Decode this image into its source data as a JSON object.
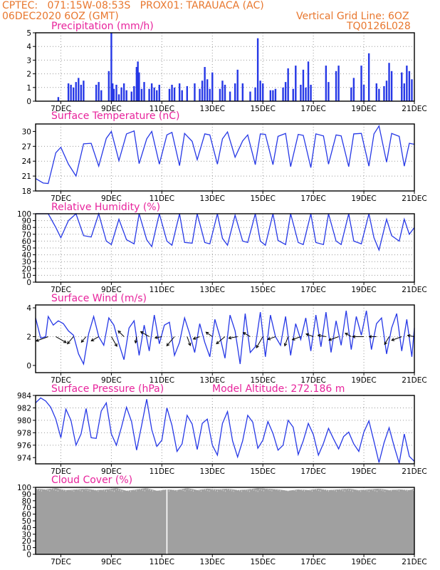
{
  "header": {
    "line1": "CPTEC:   071:15W-08:53S   PROX01: TARAUACA (AC)",
    "line2": "06DEC2020 6OZ (GMT)",
    "grid_note": "Vertical Grid Line: 6OZ",
    "code": "TQ0126L028"
  },
  "colors": {
    "header": "#e8772e",
    "title": "#e8239c",
    "series": "#2638e6",
    "cloud": "#a0a0a0",
    "grid": "#9a9a9a",
    "axis": "#000000"
  },
  "x_ticks": [
    "7DEC",
    "9DEC",
    "11DEC",
    "13DEC",
    "15DEC",
    "17DEC",
    "19DEC",
    "21DEC"
  ],
  "chart_data": [
    {
      "id": "precip",
      "type": "bar",
      "title": "Precipitation  (mm/h)",
      "xlim_days": [
        6.0,
        21.0
      ],
      "ylim": [
        0,
        5
      ],
      "yticks": [
        "0",
        "1",
        "2",
        "3",
        "4",
        "5"
      ],
      "x": [
        6.9,
        7.3,
        7.4,
        7.5,
        7.6,
        7.7,
        7.8,
        7.9,
        8.4,
        8.5,
        8.6,
        8.9,
        9.0,
        9.05,
        9.1,
        9.2,
        9.3,
        9.4,
        9.5,
        9.6,
        9.8,
        9.9,
        10.0,
        10.05,
        10.1,
        10.2,
        10.3,
        10.5,
        10.6,
        10.7,
        10.8,
        10.9,
        11.3,
        11.4,
        11.5,
        11.7,
        11.8,
        12.0,
        12.3,
        12.5,
        12.6,
        12.7,
        12.8,
        12.9,
        13.0,
        13.3,
        13.4,
        13.5,
        13.7,
        13.9,
        14.0,
        14.2,
        14.5,
        14.7,
        14.8,
        14.9,
        15.0,
        15.3,
        15.4,
        15.5,
        15.8,
        15.9,
        16.0,
        16.2,
        16.3,
        16.5,
        16.6,
        16.7,
        16.8,
        16.9,
        17.5,
        17.6,
        17.9,
        18.0,
        18.5,
        18.6,
        18.9,
        19.0,
        19.2,
        19.5,
        19.6,
        19.8,
        19.9,
        20.0,
        20.1,
        20.5,
        20.6,
        20.7,
        20.8,
        20.9
      ],
      "values": [
        0.3,
        1.3,
        1.2,
        1.0,
        1.4,
        1.7,
        1.2,
        1.5,
        1.2,
        1.4,
        0.8,
        2.2,
        5.0,
        1.3,
        0.9,
        1.2,
        0.5,
        1.0,
        1.3,
        0.8,
        0.7,
        1.1,
        2.5,
        2.9,
        2.1,
        0.9,
        1.4,
        0.9,
        1.3,
        1.0,
        0.8,
        1.2,
        0.9,
        1.2,
        1.0,
        1.3,
        0.8,
        1.1,
        1.3,
        0.9,
        1.5,
        2.5,
        1.6,
        0.9,
        2.1,
        0.9,
        1.5,
        1.2,
        0.7,
        1.3,
        2.3,
        1.3,
        0.7,
        1.0,
        4.6,
        1.5,
        1.3,
        0.8,
        0.8,
        0.9,
        1.0,
        1.4,
        2.4,
        0.9,
        2.6,
        1.2,
        2.3,
        1.0,
        2.9,
        1.2,
        2.6,
        1.4,
        2.2,
        2.6,
        1.0,
        1.7,
        2.6,
        1.2,
        3.5,
        1.3,
        0.9,
        1.1,
        1.5,
        2.8,
        2.2,
        2.1,
        1.3,
        2.6,
        2.2,
        1.6
      ]
    },
    {
      "id": "temp",
      "type": "line",
      "title": "Surface Temperature (nC)",
      "xlim_days": [
        6.0,
        21.0
      ],
      "ylim": [
        18,
        31.5
      ],
      "yticks": [
        "18",
        "21",
        "24",
        "27",
        "30"
      ],
      "ytick_values": [
        18,
        21,
        24,
        27,
        30
      ],
      "x": [
        6.0,
        6.3,
        6.5,
        6.8,
        7.0,
        7.3,
        7.6,
        7.9,
        8.2,
        8.5,
        8.8,
        9.0,
        9.3,
        9.6,
        9.9,
        10.1,
        10.4,
        10.6,
        10.9,
        11.2,
        11.4,
        11.7,
        11.9,
        12.2,
        12.4,
        12.7,
        12.9,
        13.2,
        13.4,
        13.6,
        13.9,
        14.2,
        14.4,
        14.7,
        14.9,
        15.1,
        15.4,
        15.6,
        15.9,
        16.1,
        16.4,
        16.6,
        16.9,
        17.1,
        17.4,
        17.6,
        17.9,
        18.1,
        18.4,
        18.6,
        18.9,
        19.2,
        19.4,
        19.6,
        19.9,
        20.1,
        20.4,
        20.6,
        20.8,
        21.0
      ],
      "values": [
        20.5,
        19.6,
        19.5,
        25.7,
        26.8,
        23.4,
        21.0,
        27.5,
        27.6,
        23.0,
        28.6,
        30.0,
        24.1,
        29.5,
        30.1,
        23.5,
        28.5,
        30.0,
        23.4,
        29.3,
        29.8,
        23.1,
        29.6,
        28.0,
        24.3,
        29.5,
        29.3,
        23.4,
        28.5,
        29.9,
        24.8,
        28.1,
        29.3,
        23.3,
        29.5,
        29.4,
        23.3,
        29.0,
        29.6,
        22.9,
        29.4,
        29.2,
        22.7,
        29.5,
        29.1,
        23.4,
        29.3,
        29.1,
        22.9,
        29.5,
        29.6,
        23.0,
        29.5,
        31.1,
        23.8,
        29.6,
        29.0,
        23.0,
        27.6,
        27.4
      ]
    },
    {
      "id": "rh",
      "type": "line",
      "title": "Relative Humidity  (%)",
      "xlim_days": [
        6.0,
        21.0
      ],
      "ylim": [
        0,
        100
      ],
      "yticks": [
        "0",
        "10",
        "20",
        "30",
        "40",
        "50",
        "60",
        "70",
        "80",
        "90",
        "100"
      ],
      "x": [
        6.0,
        6.3,
        6.5,
        6.8,
        7.0,
        7.3,
        7.6,
        7.9,
        8.2,
        8.5,
        8.8,
        9.0,
        9.3,
        9.6,
        9.9,
        10.1,
        10.4,
        10.6,
        10.9,
        11.2,
        11.4,
        11.7,
        11.9,
        12.2,
        12.4,
        12.7,
        12.9,
        13.2,
        13.4,
        13.6,
        13.9,
        14.2,
        14.4,
        14.7,
        14.9,
        15.1,
        15.4,
        15.6,
        15.9,
        16.1,
        16.4,
        16.6,
        16.9,
        17.1,
        17.4,
        17.6,
        17.9,
        18.1,
        18.4,
        18.6,
        18.9,
        19.2,
        19.4,
        19.6,
        19.9,
        20.1,
        20.4,
        20.6,
        20.8,
        21.0
      ],
      "values": [
        100,
        100,
        100,
        80,
        65,
        90,
        100,
        68,
        66,
        100,
        60,
        55,
        92,
        62,
        56,
        100,
        62,
        52,
        100,
        60,
        54,
        100,
        58,
        57,
        100,
        58,
        56,
        100,
        64,
        54,
        98,
        60,
        58,
        100,
        60,
        54,
        100,
        61,
        55,
        100,
        58,
        55,
        100,
        58,
        55,
        100,
        60,
        55,
        100,
        60,
        56,
        100,
        65,
        47,
        92,
        68,
        60,
        92,
        70,
        80
      ]
    },
    {
      "id": "wind",
      "type": "line",
      "title": "Surface Wind  (m/s)",
      "xlim_days": [
        6.0,
        21.0
      ],
      "ylim": [
        -0.5,
        4.2
      ],
      "yticks": [
        "0",
        "2",
        "4"
      ],
      "ytick_values": [
        0,
        2,
        4
      ],
      "x": [
        6.0,
        6.2,
        6.4,
        6.5,
        6.7,
        6.9,
        7.1,
        7.3,
        7.5,
        7.7,
        7.9,
        8.1,
        8.3,
        8.5,
        8.7,
        8.9,
        9.1,
        9.3,
        9.5,
        9.7,
        9.9,
        10.1,
        10.3,
        10.5,
        10.7,
        10.9,
        11.1,
        11.3,
        11.5,
        11.7,
        11.9,
        12.1,
        12.3,
        12.5,
        12.7,
        12.9,
        13.1,
        13.3,
        13.5,
        13.7,
        13.9,
        14.1,
        14.3,
        14.5,
        14.7,
        14.9,
        15.1,
        15.3,
        15.5,
        15.7,
        15.9,
        16.1,
        16.3,
        16.5,
        16.7,
        16.9,
        17.1,
        17.3,
        17.5,
        17.7,
        17.9,
        18.1,
        18.3,
        18.5,
        18.7,
        18.9,
        19.1,
        19.3,
        19.5,
        19.7,
        19.9,
        20.1,
        20.3,
        20.5,
        20.7,
        20.9,
        21.0
      ],
      "values": [
        3.3,
        1.9,
        2.0,
        3.4,
        2.8,
        3.1,
        2.9,
        2.4,
        2.1,
        0.8,
        0.1,
        2.2,
        3.4,
        2.0,
        1.4,
        3.3,
        2.8,
        1.5,
        0.4,
        2.6,
        3.1,
        0.7,
        2.8,
        1.0,
        3.5,
        1.5,
        2.8,
        3.0,
        0.7,
        1.6,
        3.3,
        2.2,
        0.9,
        2.9,
        1.6,
        0.6,
        3.2,
        2.0,
        0.5,
        3.5,
        2.4,
        0.1,
        3.6,
        0.9,
        1.3,
        3.7,
        0.6,
        3.5,
        2.0,
        1.4,
        3.4,
        0.7,
        2.9,
        1.8,
        3.3,
        1.0,
        3.5,
        1.3,
        3.7,
        0.9,
        3.1,
        1.4,
        3.8,
        1.1,
        3.4,
        2.1,
        3.8,
        1.1,
        2.9,
        3.3,
        0.8,
        2.6,
        3.6,
        1.0,
        3.2,
        0.6,
        2.6
      ],
      "vectors": {
        "x": [
          6.5,
          6.8,
          7.5,
          8.0,
          8.5,
          9.0,
          9.5,
          10.0,
          10.5,
          11.0,
          11.5,
          12.0,
          12.5,
          13.0,
          13.5,
          14.0,
          14.5,
          15.0,
          15.5,
          16.0,
          16.5,
          17.0,
          17.5,
          18.0,
          18.5,
          19.0,
          19.5,
          20.0,
          20.5,
          21.0
        ],
        "speed": [
          3.0,
          2.8,
          2.2,
          1.7,
          2.0,
          2.6,
          1.9,
          1.5,
          2.3,
          1.6,
          2.8,
          2.2,
          1.6,
          1.8,
          2.6,
          2.1,
          1.9,
          3.0,
          1.9,
          2.3,
          2.1,
          1.8,
          1.9,
          2.4,
          1.6,
          2.6,
          1.7,
          2.1,
          2.5,
          1.6
        ],
        "dir_deg": [
          200,
          330,
          230,
          230,
          210,
          300,
          135,
          260,
          150,
          190,
          230,
          290,
          200,
          145,
          220,
          190,
          150,
          240,
          200,
          250,
          200,
          160,
          170,
          200,
          150,
          180,
          180,
          240,
          200,
          170
        ]
      }
    },
    {
      "id": "pressure",
      "type": "line",
      "title": "Surface Pressure (hPa)",
      "annotation": "Model Altitude: 272.186  m",
      "xlim_days": [
        6.0,
        21.0
      ],
      "ylim": [
        973,
        984
      ],
      "yticks": [
        "974",
        "976",
        "978",
        "980",
        "982",
        "984"
      ],
      "ytick_values": [
        974,
        976,
        978,
        980,
        982,
        984
      ],
      "x": [
        6.0,
        6.2,
        6.4,
        6.6,
        6.8,
        7.0,
        7.2,
        7.4,
        7.6,
        7.8,
        8.0,
        8.2,
        8.4,
        8.6,
        8.8,
        9.0,
        9.2,
        9.4,
        9.6,
        9.8,
        10.0,
        10.2,
        10.4,
        10.6,
        10.8,
        11.0,
        11.2,
        11.4,
        11.6,
        11.8,
        12.0,
        12.2,
        12.4,
        12.6,
        12.8,
        13.0,
        13.2,
        13.4,
        13.6,
        13.8,
        14.0,
        14.2,
        14.4,
        14.6,
        14.8,
        15.0,
        15.2,
        15.4,
        15.6,
        15.8,
        16.0,
        16.2,
        16.4,
        16.6,
        16.8,
        17.0,
        17.2,
        17.4,
        17.6,
        17.8,
        18.0,
        18.2,
        18.4,
        18.6,
        18.8,
        19.0,
        19.2,
        19.4,
        19.6,
        19.8,
        20.0,
        20.2,
        20.4,
        20.6,
        20.8,
        21.0
      ],
      "values": [
        982.8,
        983.6,
        983.1,
        982.1,
        980.2,
        977.2,
        981.8,
        980.0,
        976.0,
        977.8,
        981.9,
        977.2,
        977.1,
        981.5,
        982.8,
        977.8,
        976.0,
        978.9,
        982.1,
        979.8,
        975.2,
        979.2,
        983.4,
        978.5,
        975.8,
        976.8,
        982.0,
        979.2,
        975.0,
        976.2,
        980.8,
        979.4,
        975.3,
        979.5,
        980.2,
        976.0,
        974.4,
        979.5,
        981.4,
        976.7,
        974.1,
        976.7,
        980.8,
        979.7,
        975.5,
        976.8,
        979.8,
        977.9,
        975.2,
        976.0,
        980.0,
        978.9,
        974.5,
        976.7,
        979.5,
        977.7,
        974.4,
        976.3,
        978.7,
        977.0,
        975.4,
        977.4,
        978.1,
        976.2,
        975.0,
        978.1,
        979.9,
        976.6,
        973.2,
        976.4,
        978.8,
        975.8,
        973.1,
        977.8,
        974.2,
        973.4
      ]
    },
    {
      "id": "cloud",
      "type": "area",
      "title": "Cloud Cover  (%)",
      "xlim_days": [
        6.0,
        21.0
      ],
      "ylim": [
        0,
        100
      ],
      "yticks": [
        "0",
        "10",
        "20",
        "30",
        "40",
        "50",
        "60",
        "70",
        "80",
        "90",
        "100"
      ],
      "x": [
        6.0,
        6.4,
        6.8,
        7.2,
        7.6,
        8.0,
        8.4,
        8.8,
        9.2,
        9.6,
        10.0,
        10.4,
        10.8,
        11.2,
        11.6,
        12.0,
        12.4,
        12.8,
        13.2,
        13.6,
        14.0,
        14.4,
        14.8,
        15.2,
        15.6,
        16.0,
        16.4,
        16.8,
        17.2,
        17.6,
        18.0,
        18.4,
        18.8,
        19.2,
        19.6,
        20.0,
        20.4,
        20.8,
        21.0
      ],
      "values": [
        98,
        97,
        99,
        96,
        97,
        98,
        96,
        97,
        99,
        95,
        97,
        99,
        95,
        97,
        96,
        99,
        96,
        98,
        97,
        98,
        96,
        97,
        99,
        98,
        97,
        95,
        97,
        96,
        98,
        96,
        97,
        98,
        96,
        97,
        98,
        96,
        97,
        96,
        98
      ],
      "gap_at_day": 11.2
    }
  ]
}
